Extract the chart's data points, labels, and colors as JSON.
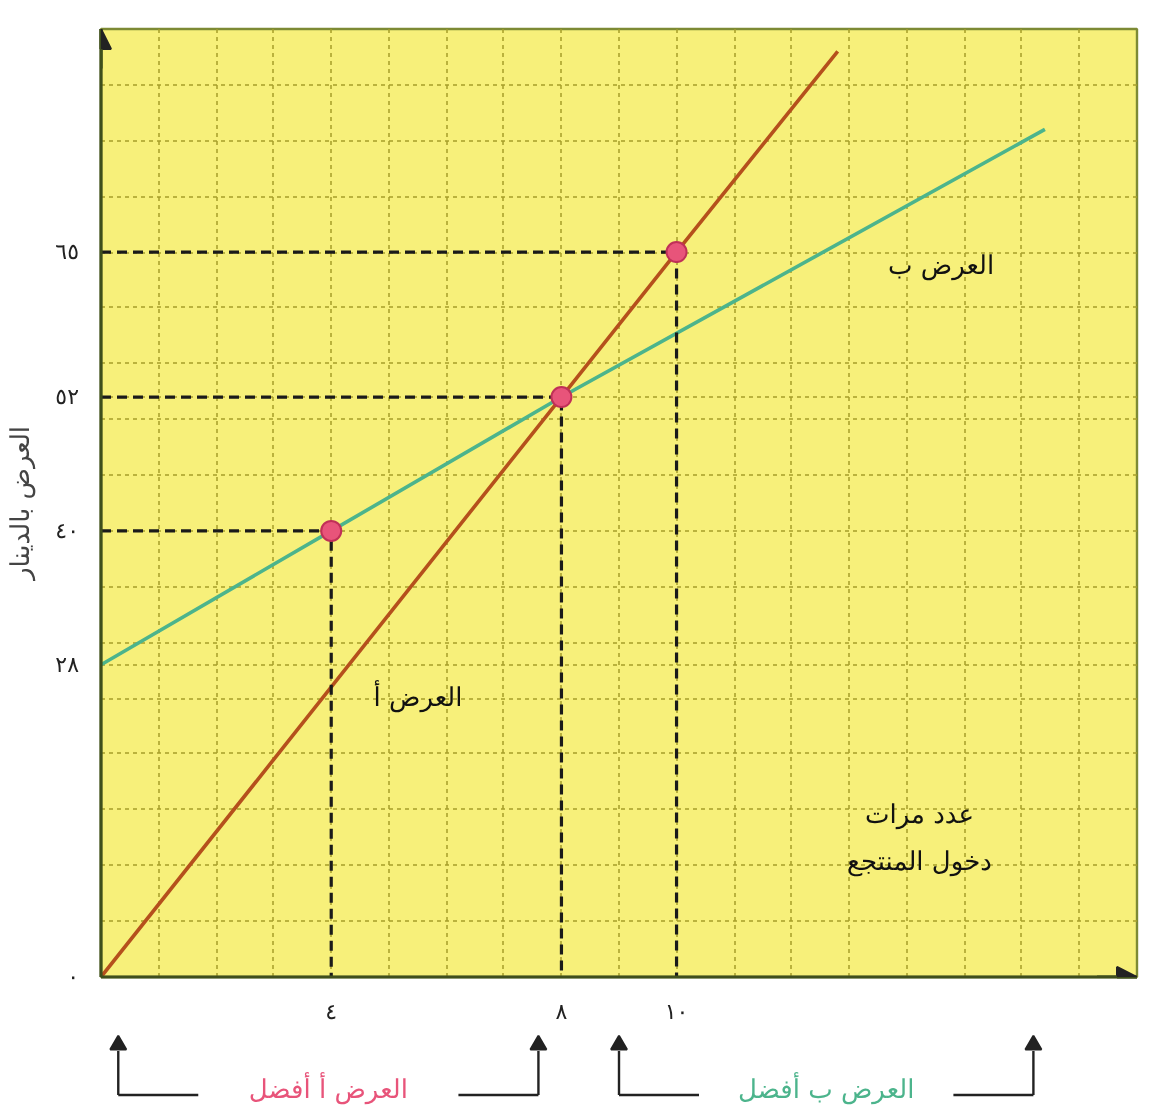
{
  "chart_data": {
    "type": "line",
    "xlabel": "عدد مرات دخول المنتجع",
    "ylabel": "العرض بالدينار",
    "xlim": [
      0,
      18
    ],
    "ylim": [
      0,
      85
    ],
    "xticks": [
      {
        "value": 0,
        "label": null
      },
      {
        "value": 1,
        "label": null
      },
      {
        "value": 2,
        "label": null
      },
      {
        "value": 3,
        "label": null
      },
      {
        "value": 4,
        "label": "٤"
      },
      {
        "value": 5,
        "label": null
      },
      {
        "value": 6,
        "label": null
      },
      {
        "value": 7,
        "label": null
      },
      {
        "value": 8,
        "label": "٨"
      },
      {
        "value": 9,
        "label": null
      },
      {
        "value": 10,
        "label": "١٠"
      },
      {
        "value": 11,
        "label": null
      },
      {
        "value": 12,
        "label": null
      },
      {
        "value": 13,
        "label": null
      },
      {
        "value": 14,
        "label": null
      },
      {
        "value": 15,
        "label": null
      },
      {
        "value": 16,
        "label": null
      },
      {
        "value": 17,
        "label": null
      },
      {
        "value": 18,
        "label": null
      }
    ],
    "yticks": [
      {
        "value": 0,
        "label": "٠"
      },
      {
        "value": 5,
        "label": null
      },
      {
        "value": 10,
        "label": null
      },
      {
        "value": 15,
        "label": null
      },
      {
        "value": 20,
        "label": null
      },
      {
        "value": 25,
        "label": null
      },
      {
        "value": 28,
        "label": "٢٨"
      },
      {
        "value": 30,
        "label": null
      },
      {
        "value": 35,
        "label": null
      },
      {
        "value": 40,
        "label": "٤٠"
      },
      {
        "value": 45,
        "label": null
      },
      {
        "value": 50,
        "label": null
      },
      {
        "value": 52,
        "label": "٥٢"
      },
      {
        "value": 55,
        "label": null
      },
      {
        "value": 60,
        "label": null
      },
      {
        "value": 65,
        "label": "٦٥"
      },
      {
        "value": 70,
        "label": null
      },
      {
        "value": 75,
        "label": null
      },
      {
        "value": 80,
        "label": null
      },
      {
        "value": 85,
        "label": null
      }
    ],
    "grid": true,
    "series": [
      {
        "name": "العرض أ",
        "color": "#b5501c",
        "x": [
          0,
          8,
          10,
          12.8
        ],
        "values": [
          0,
          52,
          65,
          83
        ]
      },
      {
        "name": "العرض ب",
        "color": "#4cb48c",
        "x": [
          0,
          4,
          8,
          16.4
        ],
        "values": [
          28,
          40,
          52,
          76
        ]
      },
      {
        "line_style": "dashed",
        "color": "#1a1a1a",
        "x": [
          0,
          4,
          4
        ],
        "values": [
          40,
          40,
          0
        ]
      },
      {
        "line_style": "dashed",
        "color": "#1a1a1a",
        "x": [
          0,
          8,
          8
        ],
        "values": [
          52,
          52,
          0
        ]
      },
      {
        "line_style": "dashed",
        "color": "#1a1a1a",
        "x": [
          0,
          10,
          10
        ],
        "values": [
          65,
          65,
          0
        ]
      },
      {
        "type": "scatter",
        "marker": "circle",
        "color": "#e8547a",
        "x": [
          4,
          8,
          10
        ],
        "values": [
          40,
          52,
          65
        ]
      }
    ],
    "annotations": [
      "العرض أ أفضل",
      "العرض ب أفضل"
    ]
  }
}
